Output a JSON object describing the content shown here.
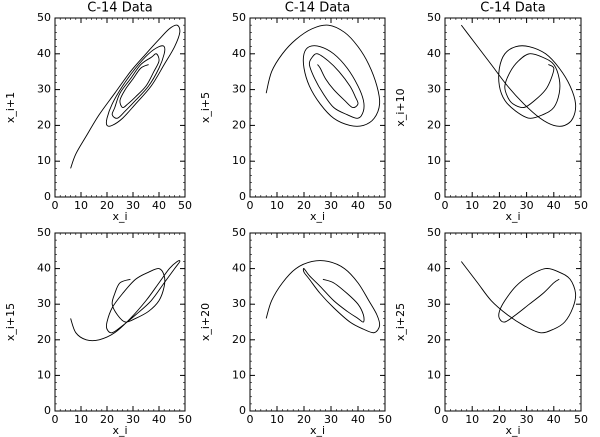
{
  "chart_data": [
    {
      "type": "line",
      "title": "C-14 Data",
      "xlabel": "x_i",
      "ylabel": "x_i+1",
      "xlim": [
        0,
        50
      ],
      "ylim": [
        0,
        50
      ],
      "xticks": [
        0,
        10,
        20,
        30,
        40,
        50
      ],
      "yticks": [
        0,
        10,
        20,
        30,
        40,
        50
      ],
      "color": "#000000",
      "x": [
        6,
        8,
        12,
        17,
        23,
        29,
        35,
        40,
        44,
        47,
        48,
        46,
        42,
        37,
        31,
        26,
        22,
        20,
        20,
        22,
        26,
        31,
        36,
        40,
        42,
        42,
        40,
        36,
        31,
        27,
        24,
        22,
        23,
        25,
        29,
        33,
        37,
        39,
        40,
        38,
        35,
        31,
        28,
        26,
        25,
        27,
        30,
        33,
        36
      ],
      "y": [
        8,
        12,
        17,
        23,
        29,
        35,
        40,
        44,
        47,
        48,
        46,
        42,
        37,
        31,
        26,
        22,
        20,
        20,
        22,
        26,
        31,
        36,
        40,
        42,
        42,
        40,
        36,
        31,
        27,
        24,
        22,
        23,
        25,
        29,
        33,
        37,
        39,
        40,
        38,
        35,
        31,
        28,
        26,
        25,
        27,
        30,
        33,
        36,
        37
      ]
    },
    {
      "type": "line",
      "title": "C-14 Data",
      "xlabel": "x_i",
      "ylabel": "x_i+5",
      "xlim": [
        0,
        50
      ],
      "ylim": [
        0,
        50
      ],
      "xticks": [
        0,
        10,
        20,
        30,
        40,
        50
      ],
      "yticks": [
        0,
        10,
        20,
        30,
        40,
        50
      ],
      "color": "#000000",
      "x": [
        6,
        8,
        12,
        17,
        23,
        29,
        35,
        40,
        44,
        47,
        48,
        46,
        42,
        37,
        31,
        26,
        22,
        20,
        20,
        22,
        26,
        31,
        36,
        40,
        42,
        42,
        40,
        36,
        31,
        27,
        24,
        22,
        23,
        25,
        29,
        33,
        37,
        39,
        40,
        38,
        35,
        31,
        28,
        26,
        25
      ],
      "y": [
        29,
        35,
        40,
        44,
        47,
        48,
        46,
        42,
        37,
        31,
        26,
        22,
        20,
        20,
        22,
        26,
        31,
        36,
        40,
        42,
        42,
        40,
        36,
        31,
        27,
        24,
        22,
        23,
        25,
        29,
        33,
        37,
        39,
        40,
        38,
        35,
        31,
        28,
        26,
        25,
        27,
        30,
        33,
        36,
        37
      ]
    },
    {
      "type": "line",
      "title": "C-14 Data",
      "xlabel": "x_i",
      "ylabel": "x_i+10",
      "xlim": [
        0,
        50
      ],
      "ylim": [
        0,
        50
      ],
      "xticks": [
        0,
        10,
        20,
        30,
        40,
        50
      ],
      "yticks": [
        0,
        10,
        20,
        30,
        40,
        50
      ],
      "color": "#000000",
      "x": [
        6,
        8,
        12,
        17,
        23,
        29,
        35,
        40,
        44,
        47,
        48,
        46,
        42,
        37,
        31,
        26,
        22,
        20,
        20,
        22,
        26,
        31,
        36,
        40,
        42,
        42,
        40,
        36,
        31,
        27,
        24,
        22,
        23,
        25,
        29,
        33,
        37,
        39,
        40,
        38
      ],
      "y": [
        48,
        46,
        42,
        37,
        31,
        26,
        22,
        20,
        20,
        22,
        26,
        31,
        36,
        40,
        42,
        42,
        40,
        36,
        31,
        27,
        24,
        22,
        23,
        25,
        29,
        33,
        37,
        39,
        40,
        38,
        35,
        31,
        28,
        26,
        25,
        27,
        30,
        33,
        36,
        37
      ]
    },
    {
      "type": "line",
      "xlabel": "x_i",
      "ylabel": "x_i+15",
      "xlim": [
        0,
        50
      ],
      "ylim": [
        0,
        50
      ],
      "xticks": [
        0,
        10,
        20,
        30,
        40,
        50
      ],
      "yticks": [
        0,
        10,
        20,
        30,
        40,
        50
      ],
      "color": "#000000",
      "x": [
        6,
        8,
        12,
        17,
        23,
        29,
        35,
        40,
        44,
        47,
        48,
        46,
        42,
        37,
        31,
        26,
        22,
        20,
        20,
        22,
        26,
        31,
        36,
        40,
        42,
        42,
        40,
        36,
        31,
        27,
        24,
        22,
        23,
        25,
        29
      ],
      "y": [
        26,
        22,
        20,
        20,
        22,
        26,
        31,
        36,
        40,
        42,
        42,
        40,
        36,
        31,
        27,
        24,
        22,
        23,
        25,
        29,
        33,
        37,
        39,
        40,
        38,
        35,
        31,
        28,
        26,
        25,
        27,
        30,
        33,
        36,
        37
      ]
    },
    {
      "type": "line",
      "xlabel": "x_i",
      "ylabel": "x_i+20",
      "xlim": [
        0,
        50
      ],
      "ylim": [
        0,
        50
      ],
      "xticks": [
        0,
        10,
        20,
        30,
        40,
        50
      ],
      "yticks": [
        0,
        10,
        20,
        30,
        40,
        50
      ],
      "color": "#000000",
      "x": [
        6,
        8,
        12,
        17,
        23,
        29,
        35,
        40,
        44,
        47,
        48,
        46,
        42,
        37,
        31,
        26,
        22,
        20,
        20,
        22,
        26,
        31,
        36,
        40,
        42,
        42,
        40,
        36,
        31,
        27
      ],
      "y": [
        26,
        31,
        36,
        40,
        42,
        42,
        40,
        36,
        31,
        27,
        24,
        22,
        23,
        25,
        29,
        33,
        37,
        39,
        40,
        38,
        35,
        31,
        28,
        26,
        25,
        27,
        30,
        33,
        36,
        37
      ]
    },
    {
      "type": "line",
      "xlabel": "x_i",
      "ylabel": "x_i+25",
      "xlim": [
        0,
        50
      ],
      "ylim": [
        0,
        50
      ],
      "xticks": [
        0,
        10,
        20,
        30,
        40,
        50
      ],
      "yticks": [
        0,
        10,
        20,
        30,
        40,
        50
      ],
      "color": "#000000",
      "x": [
        6,
        8,
        12,
        17,
        23,
        29,
        35,
        40,
        44,
        47,
        48,
        46,
        42,
        37,
        31,
        26,
        22,
        20,
        20,
        22,
        26,
        31,
        36,
        40,
        42
      ],
      "y": [
        42,
        40,
        36,
        31,
        27,
        24,
        22,
        23,
        25,
        29,
        33,
        37,
        39,
        40,
        38,
        35,
        31,
        28,
        26,
        25,
        27,
        30,
        33,
        36,
        37
      ]
    }
  ]
}
